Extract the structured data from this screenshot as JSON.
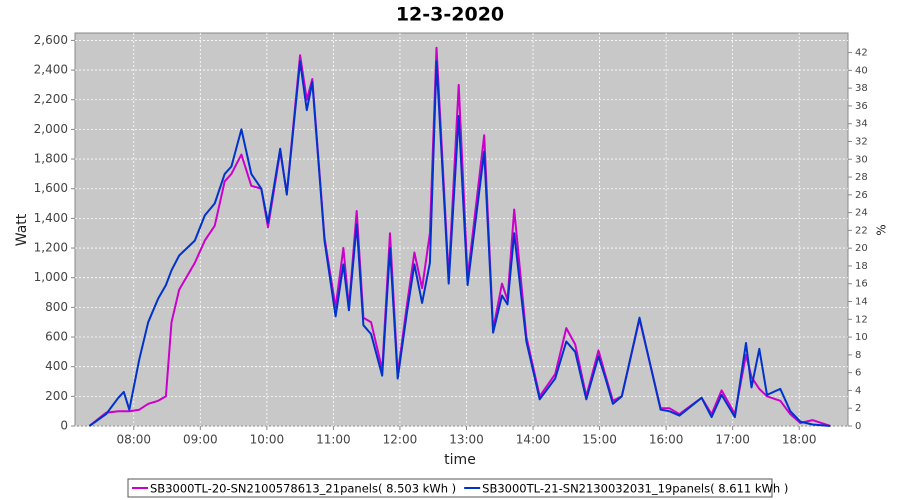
{
  "chart_data": {
    "type": "line",
    "title": "12-3-2020",
    "xlabel": "time",
    "ylabel": "Watt",
    "y2label": "%",
    "x": [
      "07:20",
      "07:35",
      "07:46",
      "07:51",
      "07:56",
      "08:05",
      "08:13",
      "08:22",
      "08:29",
      "08:34",
      "08:41",
      "08:55",
      "09:04",
      "09:13",
      "09:22",
      "09:28",
      "09:37",
      "09:46",
      "09:55",
      "10:01",
      "10:12",
      "10:18",
      "10:30",
      "10:36",
      "10:41",
      "10:52",
      "11:02",
      "11:09",
      "11:14",
      "11:21",
      "11:27",
      "11:34",
      "11:44",
      "11:51",
      "11:58",
      "12:06",
      "12:13",
      "12:20",
      "12:27",
      "12:33",
      "12:44",
      "12:53",
      "13:01",
      "13:16",
      "13:24",
      "13:32",
      "13:37",
      "13:43",
      "13:54",
      "14:06",
      "14:20",
      "14:30",
      "14:38",
      "14:48",
      "14:59",
      "15:05",
      "15:12",
      "15:20",
      "15:36",
      "15:55",
      "16:03",
      "16:12",
      "16:32",
      "16:41",
      "16:50",
      "17:02",
      "17:12",
      "17:17",
      "17:24",
      "17:31",
      "17:43",
      "17:52",
      "18:01",
      "18:12",
      "18:28"
    ],
    "series": [
      {
        "name": "SB3000TL-20-SN2100578613_21panels( 8.503 kWh )",
        "color": "#cc00cc",
        "values": [
          0,
          90,
          100,
          100,
          100,
          110,
          150,
          170,
          200,
          700,
          920,
          1100,
          1250,
          1350,
          1650,
          1700,
          1830,
          1620,
          1600,
          1340,
          1850,
          1570,
          2500,
          2200,
          2340,
          1270,
          800,
          1200,
          800,
          1450,
          730,
          700,
          380,
          1300,
          350,
          800,
          1170,
          930,
          1300,
          2550,
          1000,
          2300,
          1000,
          1960,
          650,
          960,
          850,
          1460,
          600,
          200,
          350,
          660,
          550,
          200,
          510,
          350,
          170,
          200,
          720,
          120,
          120,
          80,
          190,
          80,
          240,
          80,
          480,
          330,
          250,
          200,
          170,
          80,
          20,
          40,
          0
        ]
      },
      {
        "name": "SB3000TL-21-SN2130032031_19panels( 8.611 kWh )",
        "color": "#0033cc",
        "values": [
          0,
          80,
          190,
          230,
          110,
          450,
          700,
          860,
          950,
          1050,
          1150,
          1250,
          1420,
          1500,
          1700,
          1750,
          2000,
          1700,
          1600,
          1370,
          1870,
          1560,
          2460,
          2130,
          2320,
          1250,
          740,
          1090,
          780,
          1360,
          680,
          620,
          340,
          1200,
          320,
          750,
          1090,
          830,
          1100,
          2460,
          960,
          2090,
          950,
          1850,
          630,
          880,
          820,
          1300,
          570,
          180,
          320,
          570,
          500,
          180,
          470,
          330,
          150,
          200,
          730,
          110,
          100,
          70,
          190,
          60,
          210,
          60,
          560,
          260,
          520,
          210,
          250,
          100,
          30,
          10,
          0
        ]
      }
    ],
    "xlim": [
      "07:07",
      "18:44"
    ],
    "xticks": [
      "08:00",
      "09:00",
      "10:00",
      "11:00",
      "12:00",
      "13:00",
      "14:00",
      "15:00",
      "16:00",
      "17:00",
      "18:00"
    ],
    "ylim": [
      0,
      2650
    ],
    "yticks": [
      0,
      200,
      400,
      600,
      800,
      {
        "value": 1000,
        "label": "1,000"
      },
      {
        "value": 1200,
        "label": "1,200"
      },
      {
        "value": 1400,
        "label": "1,400"
      },
      {
        "value": 1600,
        "label": "1,600"
      },
      {
        "value": 1800,
        "label": "1,800"
      },
      {
        "value": 2000,
        "label": "2,000"
      },
      {
        "value": 2200,
        "label": "2,200"
      },
      {
        "value": 2400,
        "label": "2,400"
      },
      {
        "value": 2600,
        "label": "2,600"
      }
    ],
    "y2lim": [
      0,
      44.2
    ],
    "y2ticks": [
      0,
      2,
      4,
      6,
      8,
      10,
      12,
      14,
      16,
      18,
      20,
      22,
      24,
      26,
      28,
      30,
      32,
      34,
      36,
      38,
      40,
      42
    ],
    "grid": true,
    "legend": "bottom"
  }
}
